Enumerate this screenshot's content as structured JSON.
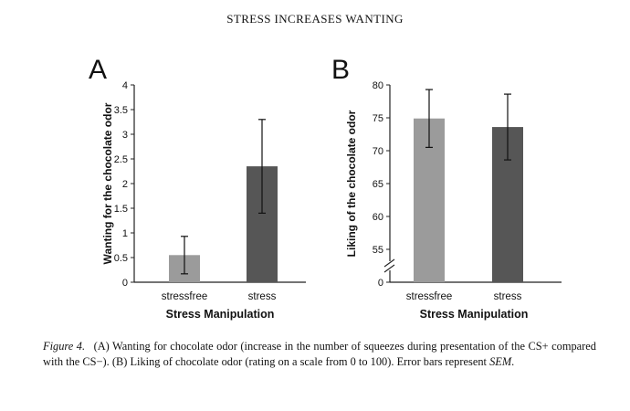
{
  "header": {
    "running_title": "STRESS INCREASES WANTING"
  },
  "caption": {
    "label": "Figure 4.",
    "text": "(A) Wanting for chocolate odor (increase in the number of squeezes during presentation of the CS+ compared with the CS−). (B) Liking of chocolate odor (rating on a scale from 0 to 100). Error bars represent",
    "sem": "SEM",
    "end": "."
  },
  "chart_data": [
    {
      "panel": "A",
      "type": "bar",
      "categories": [
        "stressfree",
        "stress"
      ],
      "values": [
        0.55,
        2.35
      ],
      "errors": [
        0.38,
        0.95
      ],
      "colors": [
        "#9b9b9b",
        "#565656"
      ],
      "xlabel": "Stress Manipulation",
      "ylabel": "Wanting for the chocolate odor",
      "ylim": [
        0,
        4
      ],
      "yticks": [
        "0",
        "0.5",
        "1",
        "1.5",
        "2",
        "2.5",
        "3",
        "3.5",
        "4"
      ],
      "grid": false
    },
    {
      "panel": "B",
      "type": "bar",
      "categories": [
        "stressfree",
        "stress"
      ],
      "values": [
        74.9,
        73.6
      ],
      "errors": [
        4.4,
        5.0
      ],
      "colors": [
        "#9b9b9b",
        "#565656"
      ],
      "xlabel": "Stress Manipulation",
      "ylabel": "Liking of the chocolate odor",
      "ylim": [
        50,
        80
      ],
      "yticks": [
        "0",
        "55",
        "60",
        "65",
        "70",
        "75",
        "80"
      ],
      "axis_break": true,
      "grid": false
    }
  ]
}
